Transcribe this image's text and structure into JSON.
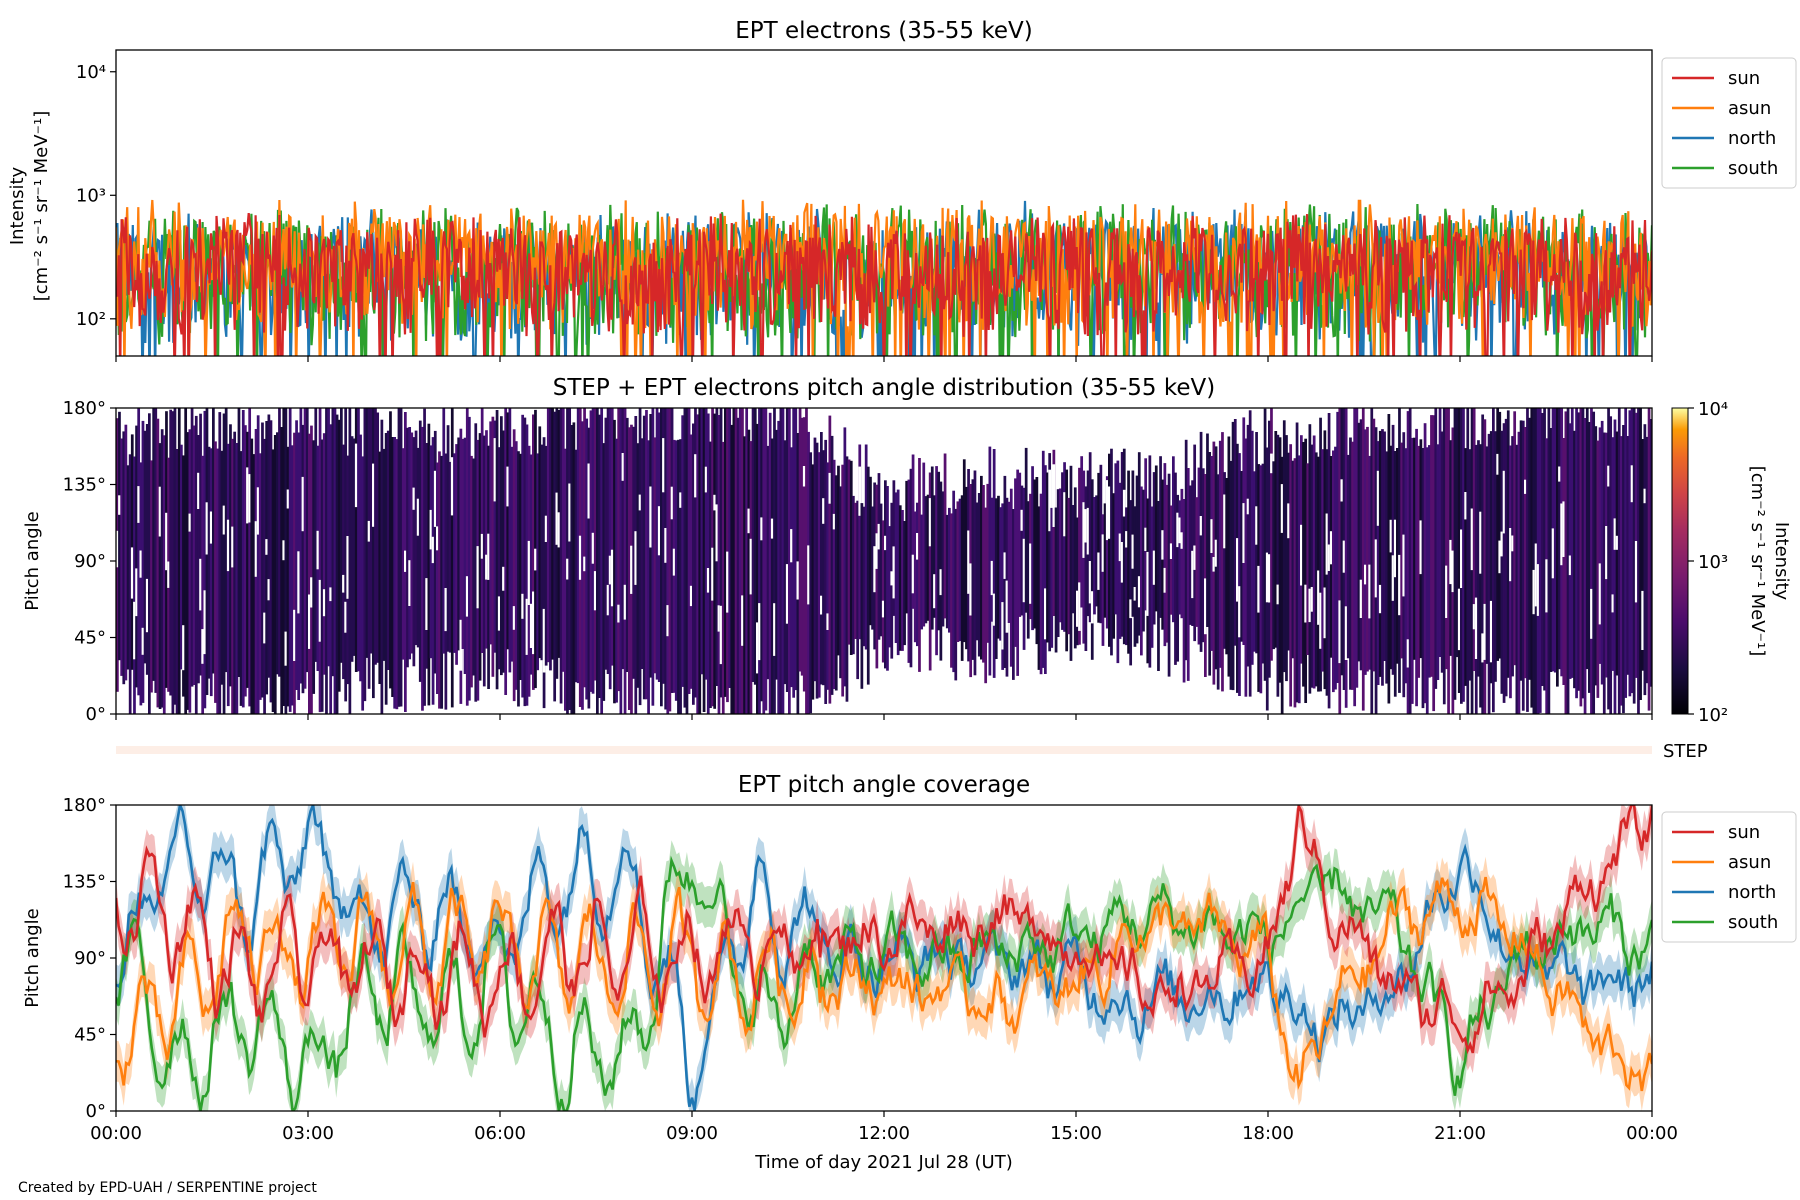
{
  "chart_data": [
    {
      "type": "line",
      "title": "EPT electrons (35-55 keV)",
      "ylabel_line1": "Intensity",
      "ylabel_line2": "[cm⁻² s⁻¹ sr⁻¹ MeV⁻¹]",
      "y_scale": "log",
      "ylim": [
        50,
        15000
      ],
      "y_ticks": [
        {
          "value": 100,
          "label": "10²"
        },
        {
          "value": 1000,
          "label": "10³"
        },
        {
          "value": 10000,
          "label": "10⁴"
        }
      ],
      "xlim_hours": [
        0,
        24
      ],
      "legend_placement": "outside-right-top",
      "series": [
        {
          "name": "north",
          "color": "#1f77b4",
          "typical_range": [
            60,
            600
          ],
          "peak": {
            "hour": 14.2,
            "value": 900
          }
        },
        {
          "name": "south",
          "color": "#2ca02c",
          "typical_range": [
            60,
            650
          ]
        },
        {
          "name": "asun",
          "color": "#ff7f0e",
          "typical_range": [
            80,
            700
          ]
        },
        {
          "name": "sun",
          "color": "#d62728",
          "typical_range": [
            70,
            550
          ]
        }
      ],
      "legend": [
        "sun",
        "asun",
        "north",
        "south"
      ]
    },
    {
      "type": "heatmap",
      "title": "STEP + EPT electrons pitch angle distribution (35-55 keV)",
      "ylabel": "Pitch angle",
      "ylim_deg": [
        0,
        180
      ],
      "y_ticks": [
        "0°",
        "45°",
        "90°",
        "135°",
        "180°"
      ],
      "xlim_hours": [
        0,
        24
      ],
      "colorbar": {
        "label_line1": "Intensity",
        "label_line2": "[cm⁻² s⁻¹ sr⁻¹ MeV⁻¹]",
        "scale": "log",
        "range": [
          100,
          10000
        ],
        "ticks": [
          "10²",
          "10³",
          "10⁴"
        ],
        "colormap": "inferno"
      },
      "coverage_band": {
        "hours": [
          0,
          1.5,
          3,
          4.5,
          6,
          7.5,
          9,
          10.5,
          12,
          13.5,
          15,
          16.5,
          18,
          19.5,
          21,
          22.5,
          24
        ],
        "lo_deg": [
          15,
          5,
          10,
          20,
          25,
          10,
          5,
          0,
          45,
          35,
          45,
          40,
          20,
          15,
          15,
          10,
          10
        ],
        "hi_deg": [
          160,
          170,
          175,
          165,
          170,
          175,
          180,
          175,
          130,
          140,
          135,
          140,
          165,
          170,
          175,
          180,
          180
        ]
      }
    },
    {
      "type": "line",
      "label": "STEP",
      "description": "thin pale strip between panels"
    },
    {
      "type": "line",
      "title": "EPT pitch angle coverage",
      "ylabel": "Pitch angle",
      "ylim_deg": [
        0,
        180
      ],
      "y_ticks": [
        "0°",
        "45°",
        "90°",
        "135°",
        "180°"
      ],
      "xlim_hours": [
        0,
        24
      ],
      "x_ticks": [
        "00:00",
        "03:00",
        "06:00",
        "09:00",
        "12:00",
        "15:00",
        "18:00",
        "21:00",
        "00:00"
      ],
      "xlabel": "Time of day 2021 Jul 28 (UT)",
      "legend_placement": "outside-right-top",
      "legend": [
        "sun",
        "asun",
        "north",
        "south"
      ],
      "x_hours": [
        0,
        1,
        2,
        3,
        4,
        5,
        6,
        7,
        8,
        9,
        10,
        11,
        12,
        13,
        14,
        15,
        16,
        17,
        18,
        18.5,
        19,
        20,
        21,
        22,
        23,
        24
      ],
      "series": [
        {
          "name": "sun",
          "color": "#d62728",
          "values": [
            130,
            115,
            75,
            90,
            80,
            85,
            80,
            95,
            90,
            95,
            100,
            100,
            105,
            110,
            115,
            100,
            70,
            75,
            90,
            170,
            120,
            70,
            55,
            80,
            135,
            170
          ]
        },
        {
          "name": "asun",
          "color": "#ff7f0e",
          "values": [
            45,
            60,
            105,
            90,
            100,
            95,
            95,
            85,
            90,
            85,
            80,
            80,
            75,
            70,
            65,
            75,
            110,
            105,
            90,
            10,
            60,
            110,
            125,
            100,
            45,
            15
          ]
        },
        {
          "name": "north",
          "color": "#1f77b4",
          "values": [
            90,
            150,
            125,
            155,
            110,
            120,
            100,
            140,
            150,
            30,
            130,
            95,
            90,
            90,
            85,
            80,
            65,
            70,
            80,
            60,
            50,
            75,
            150,
            85,
            70,
            80
          ]
        },
        {
          "name": "south",
          "color": "#2ca02c",
          "values": [
            90,
            30,
            55,
            25,
            70,
            60,
            80,
            40,
            30,
            160,
            50,
            85,
            90,
            90,
            95,
            100,
            115,
            110,
            100,
            120,
            130,
            105,
            30,
            95,
            110,
            95
          ]
        }
      ]
    }
  ],
  "footer": {
    "credit": "Created by EPD-UAH / SERPENTINE project"
  }
}
